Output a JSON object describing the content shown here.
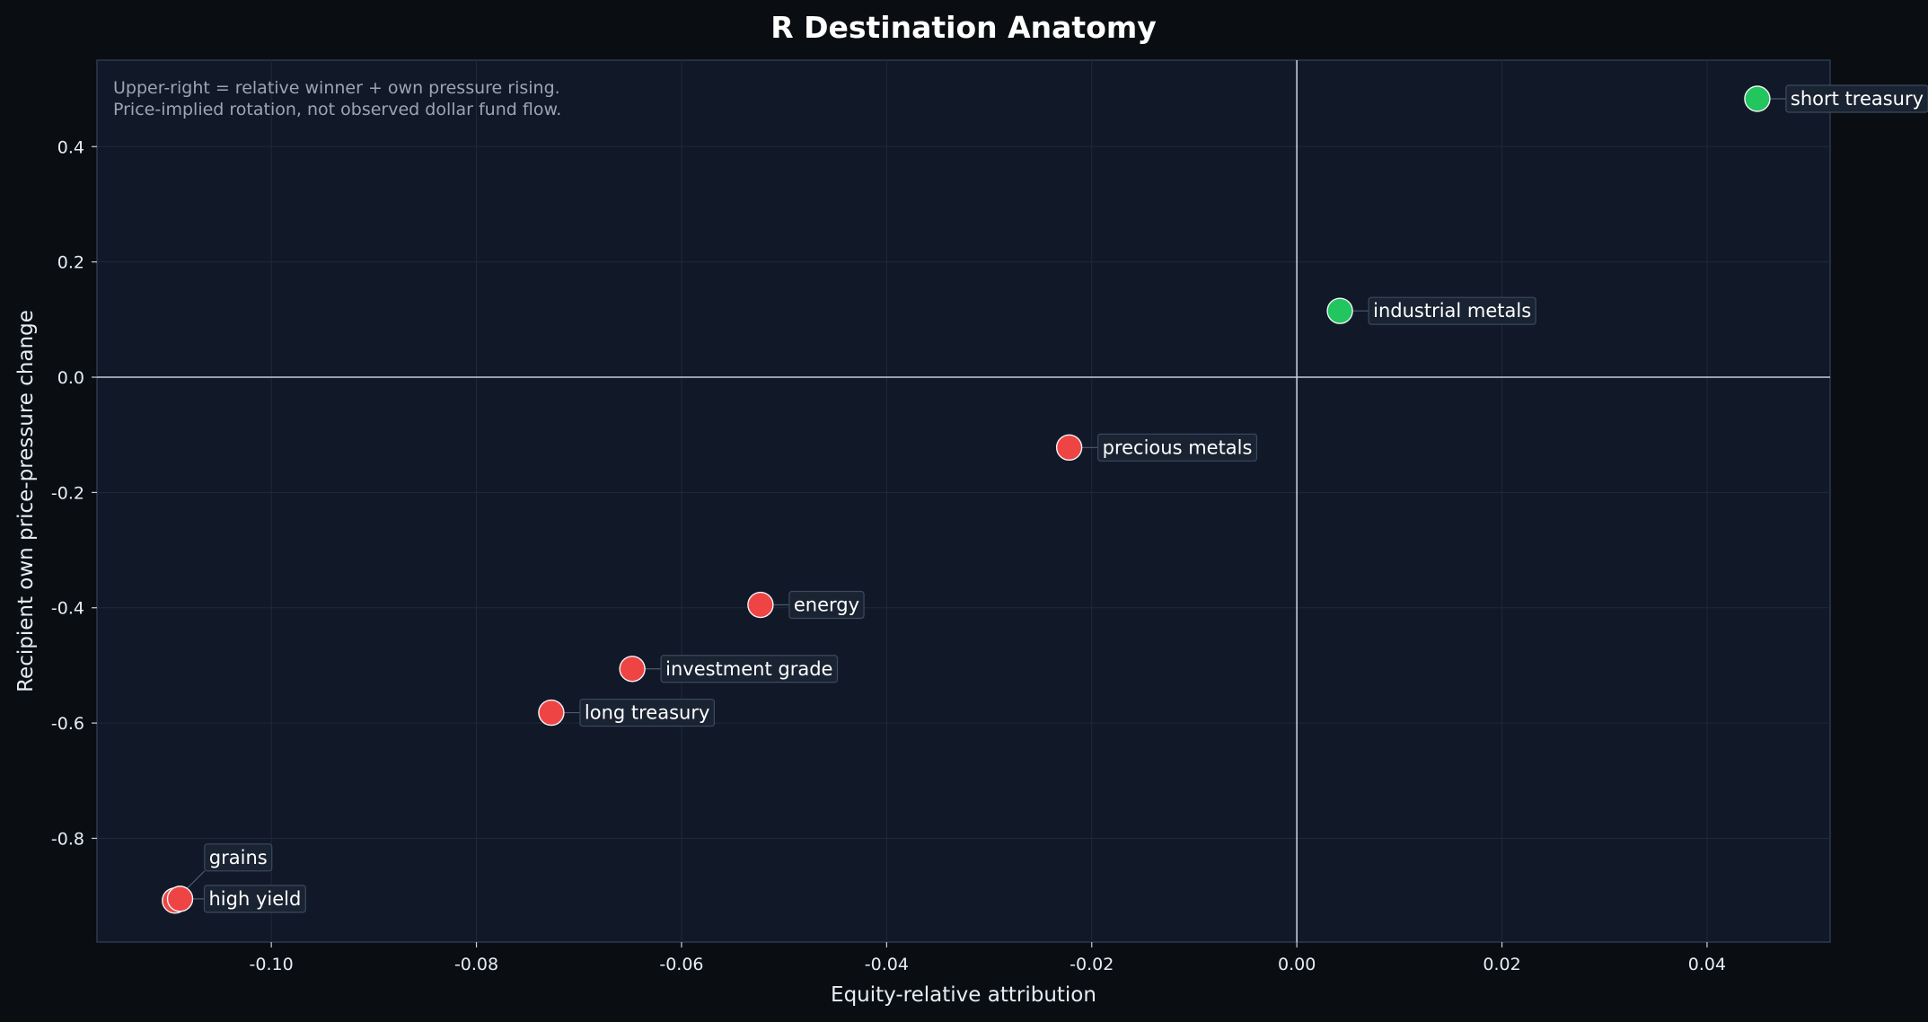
{
  "chart_data": {
    "type": "scatter",
    "title": "R Destination Anatomy",
    "xlabel": "Equity-relative attribution",
    "ylabel": "Recipient own price-pressure change",
    "xlim": [
      -0.117,
      0.052
    ],
    "ylim": [
      -0.98,
      0.55
    ],
    "xticks": [
      -0.1,
      -0.08,
      -0.06,
      -0.04,
      -0.02,
      0.0,
      0.02,
      0.04
    ],
    "xtick_labels": [
      "-0.10",
      "-0.08",
      "-0.06",
      "-0.04",
      "-0.02",
      "0.00",
      "0.02",
      "0.04"
    ],
    "yticks": [
      0.4,
      0.2,
      0.0,
      -0.2,
      -0.4,
      -0.6,
      -0.8
    ],
    "ytick_labels": [
      "0.4",
      "0.2",
      "0.0",
      "-0.2",
      "-0.4",
      "-0.6",
      "-0.8"
    ],
    "grid": true,
    "reference_lines": {
      "x": 0,
      "y": 0
    },
    "annotations": [
      "Upper-right = relative winner + own pressure rising.",
      "Price-implied rotation, not observed dollar fund flow."
    ],
    "colors": {
      "positive": "#22c55e",
      "negative": "#ef4444"
    },
    "points": [
      {
        "name": "short treasury",
        "x": 0.0449,
        "y": 0.483
      },
      {
        "name": "industrial metals",
        "x": 0.0042,
        "y": 0.115
      },
      {
        "name": "precious metals",
        "x": -0.0222,
        "y": -0.122
      },
      {
        "name": "energy",
        "x": -0.0523,
        "y": -0.395
      },
      {
        "name": "investment grade",
        "x": -0.0648,
        "y": -0.506
      },
      {
        "name": "long treasury",
        "x": -0.0727,
        "y": -0.582
      },
      {
        "name": "grains",
        "x": -0.1094,
        "y": -0.908
      },
      {
        "name": "high yield",
        "x": -0.1089,
        "y": -0.905
      }
    ]
  }
}
